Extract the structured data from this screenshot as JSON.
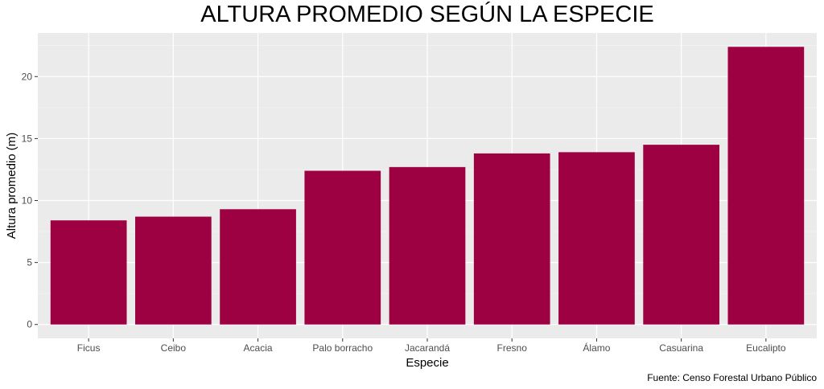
{
  "chart_data": {
    "type": "bar",
    "title": "ALTURA PROMEDIO SEGÚN LA ESPECIE",
    "xlabel": "Especie",
    "ylabel": "Altura promedio (m)",
    "caption": "Fuente: Censo Forestal Urbano Público",
    "categories": [
      "Ficus",
      "Ceibo",
      "Acacia",
      "Palo borracho",
      "Jacarandá",
      "Fresno",
      "Álamo",
      "Casuarina",
      "Eucalipto"
    ],
    "values": [
      8.4,
      8.7,
      9.3,
      12.4,
      12.7,
      13.8,
      13.9,
      14.5,
      22.4
    ],
    "yticks": [
      0,
      5,
      10,
      15,
      20
    ],
    "ylim": [
      -1.12,
      23.52
    ],
    "grid": true,
    "legend": "none",
    "colors": {
      "bar": "#9e0142",
      "panel": "#ebebeb",
      "grid_major": "#ffffff",
      "grid_minor": "#f5f5f5"
    }
  }
}
